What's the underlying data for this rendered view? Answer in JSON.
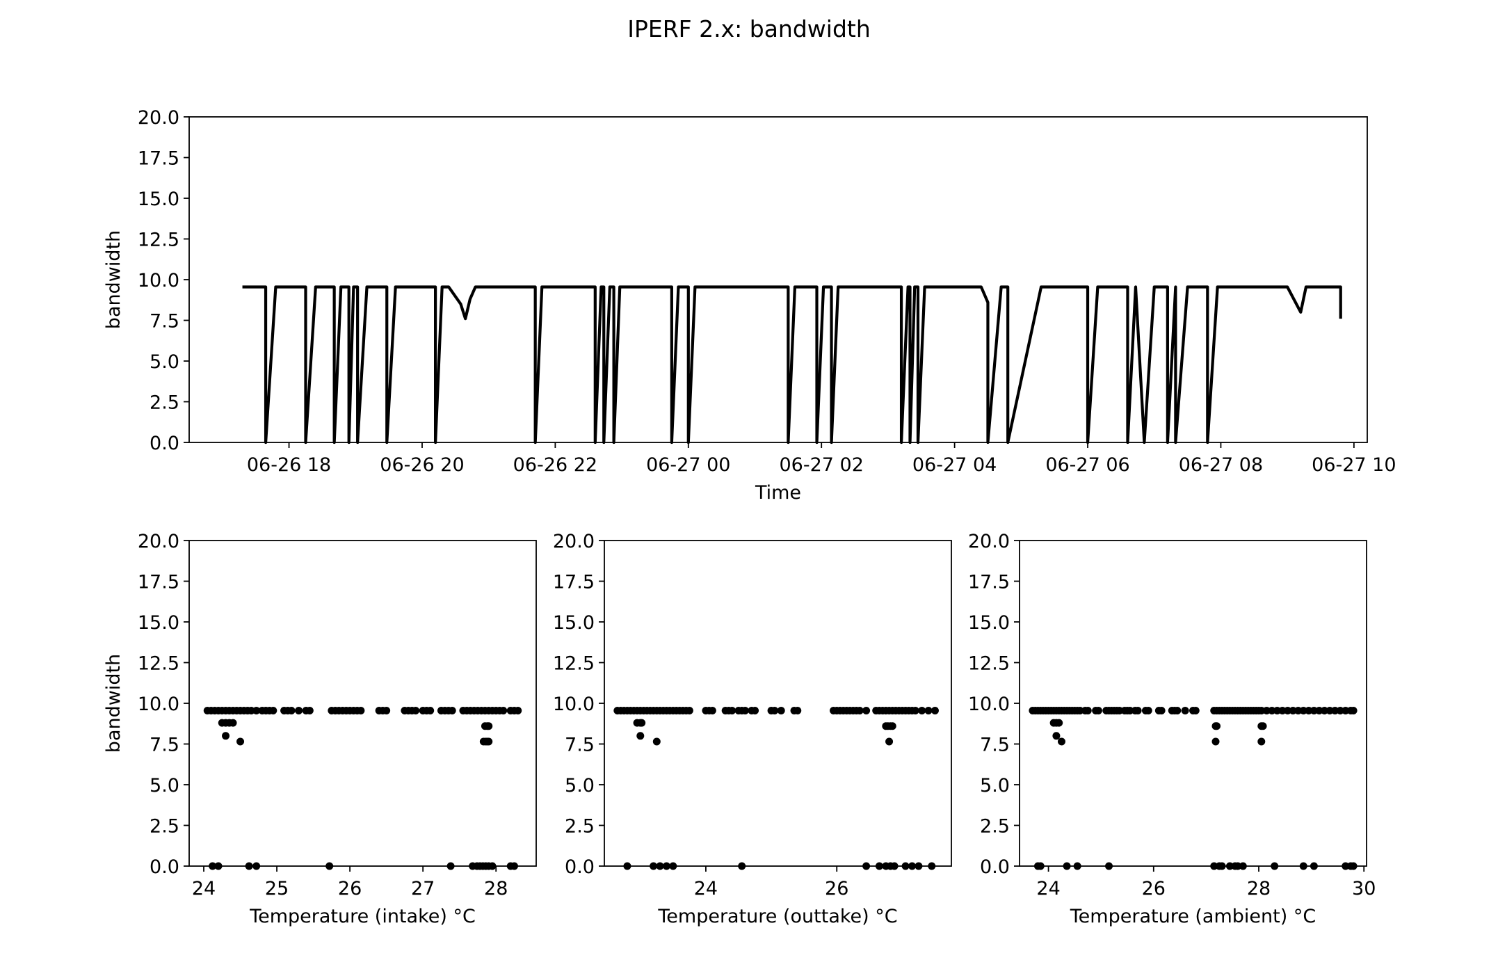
{
  "figure": {
    "title": "IPERF 2.x: bandwidth"
  },
  "chart_data": [
    {
      "type": "line",
      "xlabel": "Time",
      "ylabel": "bandwidth",
      "xlim": [
        16.5,
        34.2
      ],
      "ylim": [
        0,
        20
      ],
      "x_ticks": [
        {
          "v": 18,
          "label": "06-26 18"
        },
        {
          "v": 20,
          "label": "06-26 20"
        },
        {
          "v": 22,
          "label": "06-26 22"
        },
        {
          "v": 24,
          "label": "06-27 00"
        },
        {
          "v": 26,
          "label": "06-27 02"
        },
        {
          "v": 28,
          "label": "06-27 04"
        },
        {
          "v": 30,
          "label": "06-27 06"
        },
        {
          "v": 32,
          "label": "06-27 08"
        },
        {
          "v": 34,
          "label": "06-27 10"
        }
      ],
      "y_ticks": [
        "0.0",
        "2.5",
        "5.0",
        "7.5",
        "10.0",
        "12.5",
        "15.0",
        "17.5",
        "20.0"
      ],
      "grid": false,
      "series": [
        {
          "color": "#000000",
          "x": [
            17.3,
            17.65,
            17.65,
            17.8,
            18.25,
            18.25,
            18.4,
            18.68,
            18.68,
            18.78,
            18.9,
            18.9,
            18.97,
            19.03,
            19.03,
            19.17,
            19.47,
            19.47,
            19.6,
            20.2,
            20.2,
            20.3,
            20.4,
            20.58,
            20.65,
            20.72,
            20.8,
            21.0,
            21.5,
            21.7,
            21.7,
            21.8,
            22.6,
            22.6,
            22.69,
            22.73,
            22.73,
            22.82,
            22.88,
            22.88,
            22.97,
            23.0,
            23.5,
            23.75,
            23.75,
            23.85,
            24.0,
            24.0,
            24.1,
            24.2,
            25.5,
            25.5,
            25.6,
            25.7,
            25.85,
            25.93,
            25.93,
            26.03,
            26.08,
            26.15,
            26.15,
            26.25,
            27.2,
            27.2,
            27.3,
            27.33,
            27.33,
            27.4,
            27.45,
            27.45,
            27.55,
            28.0,
            28.4,
            28.5,
            28.5,
            28.7,
            28.7,
            28.8,
            28.8,
            29.3,
            29.3,
            29.4,
            29.9,
            30.0,
            30.0,
            30.15,
            30.6,
            30.6,
            30.72,
            30.72,
            30.85,
            31.0,
            31.2,
            31.2,
            31.32,
            31.32,
            31.5,
            31.8,
            31.8,
            31.95,
            32.0,
            32.35,
            33.0,
            33.2,
            33.28,
            33.35,
            33.8,
            33.8
          ],
          "values": [
            9.55,
            9.55,
            0,
            9.55,
            9.55,
            0,
            9.55,
            9.55,
            0,
            9.55,
            9.55,
            0,
            9.55,
            9.55,
            0,
            9.55,
            9.55,
            0,
            9.55,
            9.55,
            0,
            9.55,
            9.55,
            8.5,
            7.6,
            8.8,
            9.55,
            9.55,
            9.55,
            9.55,
            0,
            9.55,
            9.55,
            0,
            9.55,
            9.55,
            0,
            9.55,
            9.55,
            0,
            9.55,
            9.55,
            9.55,
            9.55,
            0,
            9.55,
            9.55,
            0,
            9.55,
            9.55,
            9.55,
            0,
            9.55,
            9.55,
            9.55,
            9.55,
            0,
            9.55,
            9.55,
            9.55,
            0,
            9.55,
            9.55,
            0,
            9.55,
            9.55,
            0,
            9.55,
            9.55,
            0,
            9.55,
            9.55,
            9.55,
            8.6,
            0,
            9.55,
            9.55,
            9.55,
            0,
            9.55,
            9.55,
            9.55,
            9.55,
            9.55,
            0,
            9.55,
            9.55,
            0,
            9.55,
            9.55,
            0,
            9.55,
            9.55,
            0,
            9.55,
            0,
            9.55,
            9.55,
            0,
            9.55,
            9.55,
            9.55,
            9.55,
            8.0,
            9.55,
            9.55,
            9.55,
            7.6
          ]
        }
      ]
    },
    {
      "type": "scatter",
      "xlabel": "Temperature (intake) °C",
      "ylabel": "bandwidth",
      "xlim": [
        23.8,
        28.55
      ],
      "ylim": [
        0,
        20
      ],
      "x_ticks": [
        {
          "v": 24,
          "label": "24"
        },
        {
          "v": 25,
          "label": "25"
        },
        {
          "v": 26,
          "label": "26"
        },
        {
          "v": 27,
          "label": "27"
        },
        {
          "v": 28,
          "label": "28"
        }
      ],
      "y_ticks": [
        "0.0",
        "2.5",
        "5.0",
        "7.5",
        "10.0",
        "12.5",
        "15.0",
        "17.5",
        "20.0"
      ],
      "grid": false,
      "series": [
        {
          "color": "#000000",
          "x": [
            24.05,
            24.1,
            24.15,
            24.2,
            24.25,
            24.3,
            24.35,
            24.4,
            24.45,
            24.5,
            24.55,
            24.6,
            24.65,
            24.72,
            24.8,
            24.85,
            24.9,
            24.95,
            25.1,
            25.15,
            25.2,
            25.3,
            25.4,
            25.45,
            25.75,
            25.8,
            25.85,
            25.9,
            25.95,
            26.0,
            26.05,
            26.1,
            26.15,
            26.4,
            26.45,
            26.5,
            26.75,
            26.8,
            26.85,
            26.9,
            27.0,
            27.05,
            27.1,
            27.25,
            27.3,
            27.35,
            27.4,
            27.55,
            27.6,
            27.65,
            27.7,
            27.75,
            27.8,
            27.85,
            27.9,
            27.95,
            28.0,
            28.05,
            28.1,
            28.2,
            28.25,
            28.3,
            24.25,
            24.3,
            24.35,
            24.4,
            24.3,
            24.5,
            27.85,
            27.88,
            27.9,
            27.83,
            27.86,
            27.88,
            27.9,
            24.12,
            24.2,
            24.62,
            24.72,
            25.72,
            27.38,
            27.68,
            27.74,
            27.78,
            27.82,
            27.86,
            27.9,
            27.95,
            28.2,
            28.25
          ],
          "values": [
            9.55,
            9.55,
            9.55,
            9.55,
            9.55,
            9.55,
            9.55,
            9.55,
            9.55,
            9.55,
            9.55,
            9.55,
            9.55,
            9.55,
            9.55,
            9.55,
            9.55,
            9.55,
            9.55,
            9.55,
            9.55,
            9.55,
            9.55,
            9.55,
            9.55,
            9.55,
            9.55,
            9.55,
            9.55,
            9.55,
            9.55,
            9.55,
            9.55,
            9.55,
            9.55,
            9.55,
            9.55,
            9.55,
            9.55,
            9.55,
            9.55,
            9.55,
            9.55,
            9.55,
            9.55,
            9.55,
            9.55,
            9.55,
            9.55,
            9.55,
            9.55,
            9.55,
            9.55,
            9.55,
            9.55,
            9.55,
            9.55,
            9.55,
            9.55,
            9.55,
            9.55,
            9.55,
            8.8,
            8.8,
            8.8,
            8.8,
            8.0,
            7.65,
            8.6,
            8.6,
            8.6,
            7.65,
            7.65,
            7.65,
            7.65,
            0,
            0,
            0,
            0,
            0,
            0,
            0,
            0,
            0,
            0,
            0,
            0,
            0,
            0,
            0
          ]
        }
      ]
    },
    {
      "type": "scatter",
      "xlabel": "Temperature (outtake) °C",
      "ylabel": "",
      "xlim": [
        22.45,
        27.75
      ],
      "ylim": [
        0,
        20
      ],
      "x_ticks": [
        {
          "v": 24,
          "label": "24"
        },
        {
          "v": 26,
          "label": "26"
        }
      ],
      "y_ticks": [
        "0.0",
        "2.5",
        "5.0",
        "7.5",
        "10.0",
        "12.5",
        "15.0",
        "17.5",
        "20.0"
      ],
      "grid": false,
      "series": [
        {
          "color": "#000000",
          "x": [
            22.65,
            22.7,
            22.75,
            22.8,
            22.85,
            22.9,
            22.95,
            23.0,
            23.05,
            23.1,
            23.15,
            23.2,
            23.25,
            23.3,
            23.35,
            23.4,
            23.45,
            23.5,
            23.55,
            23.6,
            23.65,
            23.7,
            23.75,
            24.0,
            24.05,
            24.1,
            24.3,
            24.35,
            24.4,
            24.5,
            24.55,
            24.6,
            24.7,
            24.75,
            25.0,
            25.05,
            25.15,
            25.35,
            25.4,
            25.95,
            26.0,
            26.05,
            26.1,
            26.15,
            26.2,
            26.25,
            26.3,
            26.35,
            26.45,
            26.6,
            26.65,
            26.7,
            26.75,
            26.8,
            26.85,
            26.9,
            26.95,
            27.0,
            27.05,
            27.1,
            27.15,
            27.2,
            27.3,
            27.4,
            27.5,
            22.95,
            23.0,
            23.02,
            23.0,
            23.25,
            26.75,
            26.78,
            26.82,
            26.85,
            26.8,
            22.8,
            23.2,
            23.3,
            23.4,
            23.5,
            24.55,
            26.45,
            26.65,
            26.75,
            26.82,
            26.88,
            27.05,
            27.15,
            27.25,
            27.45
          ],
          "values": [
            9.55,
            9.55,
            9.55,
            9.55,
            9.55,
            9.55,
            9.55,
            9.55,
            9.55,
            9.55,
            9.55,
            9.55,
            9.55,
            9.55,
            9.55,
            9.55,
            9.55,
            9.55,
            9.55,
            9.55,
            9.55,
            9.55,
            9.55,
            9.55,
            9.55,
            9.55,
            9.55,
            9.55,
            9.55,
            9.55,
            9.55,
            9.55,
            9.55,
            9.55,
            9.55,
            9.55,
            9.55,
            9.55,
            9.55,
            9.55,
            9.55,
            9.55,
            9.55,
            9.55,
            9.55,
            9.55,
            9.55,
            9.55,
            9.55,
            9.55,
            9.55,
            9.55,
            9.55,
            9.55,
            9.55,
            9.55,
            9.55,
            9.55,
            9.55,
            9.55,
            9.55,
            9.55,
            9.55,
            9.55,
            9.55,
            8.8,
            8.8,
            8.8,
            8.0,
            7.65,
            8.6,
            8.6,
            8.6,
            8.6,
            7.65,
            0,
            0,
            0,
            0,
            0,
            0,
            0,
            0,
            0,
            0,
            0,
            0,
            0,
            0,
            0
          ]
        }
      ]
    },
    {
      "type": "scatter",
      "xlabel": "Temperature (ambient) °C",
      "ylabel": "",
      "xlim": [
        23.45,
        30.05
      ],
      "ylim": [
        0,
        20
      ],
      "x_ticks": [
        {
          "v": 24,
          "label": "24"
        },
        {
          "v": 26,
          "label": "26"
        },
        {
          "v": 28,
          "label": "28"
        },
        {
          "v": 30,
          "label": "30"
        }
      ],
      "y_ticks": [
        "0.0",
        "2.5",
        "5.0",
        "7.5",
        "10.0",
        "12.5",
        "15.0",
        "17.5",
        "20.0"
      ],
      "grid": false,
      "series": [
        {
          "color": "#000000",
          "x": [
            23.7,
            23.75,
            23.8,
            23.85,
            23.9,
            23.95,
            24.0,
            24.05,
            24.1,
            24.15,
            24.2,
            24.25,
            24.3,
            24.35,
            24.4,
            24.45,
            24.5,
            24.55,
            24.6,
            24.7,
            24.75,
            24.9,
            24.95,
            25.1,
            25.15,
            25.2,
            25.25,
            25.3,
            25.35,
            25.45,
            25.5,
            25.55,
            25.65,
            25.7,
            25.85,
            25.9,
            26.1,
            26.15,
            26.35,
            26.4,
            26.45,
            26.6,
            26.75,
            26.8,
            27.15,
            27.2,
            27.25,
            27.3,
            27.35,
            27.4,
            27.45,
            27.5,
            27.55,
            27.6,
            27.65,
            27.7,
            27.75,
            27.8,
            27.85,
            27.9,
            27.95,
            28.0,
            28.05,
            28.15,
            28.25,
            28.35,
            28.45,
            28.55,
            28.65,
            28.75,
            28.85,
            28.95,
            29.05,
            29.15,
            29.25,
            29.35,
            29.45,
            29.55,
            29.65,
            29.75,
            29.8,
            24.1,
            24.15,
            24.2,
            24.15,
            24.25,
            27.18,
            27.2,
            28.05,
            28.08,
            27.18,
            28.05,
            23.8,
            23.85,
            24.35,
            24.55,
            25.15,
            27.15,
            27.25,
            27.3,
            27.45,
            27.55,
            27.6,
            27.7,
            28.3,
            28.85,
            29.05,
            29.65,
            29.75,
            29.8
          ],
          "values": [
            9.55,
            9.55,
            9.55,
            9.55,
            9.55,
            9.55,
            9.55,
            9.55,
            9.55,
            9.55,
            9.55,
            9.55,
            9.55,
            9.55,
            9.55,
            9.55,
            9.55,
            9.55,
            9.55,
            9.55,
            9.55,
            9.55,
            9.55,
            9.55,
            9.55,
            9.55,
            9.55,
            9.55,
            9.55,
            9.55,
            9.55,
            9.55,
            9.55,
            9.55,
            9.55,
            9.55,
            9.55,
            9.55,
            9.55,
            9.55,
            9.55,
            9.55,
            9.55,
            9.55,
            9.55,
            9.55,
            9.55,
            9.55,
            9.55,
            9.55,
            9.55,
            9.55,
            9.55,
            9.55,
            9.55,
            9.55,
            9.55,
            9.55,
            9.55,
            9.55,
            9.55,
            9.55,
            9.55,
            9.55,
            9.55,
            9.55,
            9.55,
            9.55,
            9.55,
            9.55,
            9.55,
            9.55,
            9.55,
            9.55,
            9.55,
            9.55,
            9.55,
            9.55,
            9.55,
            9.55,
            9.55,
            8.8,
            8.8,
            8.8,
            8.0,
            7.65,
            8.6,
            8.6,
            8.6,
            8.6,
            7.65,
            7.65,
            0,
            0,
            0,
            0,
            0,
            0,
            0,
            0,
            0,
            0,
            0,
            0,
            0,
            0,
            0,
            0,
            0,
            0
          ]
        }
      ]
    }
  ]
}
